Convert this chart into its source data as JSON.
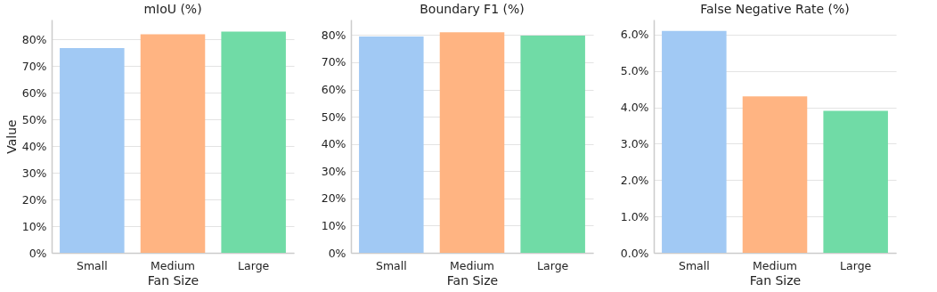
{
  "chart_data": [
    {
      "type": "bar",
      "title": "mIoU (%)",
      "xlabel": "Fan Size",
      "ylabel": "Value",
      "categories": [
        "Small",
        "Medium",
        "Large"
      ],
      "values": [
        76.8,
        82.0,
        83.0
      ],
      "colors": [
        "#a1c9f4",
        "#ffb482",
        "#70dba6"
      ],
      "ylim": [
        0,
        87.5
      ],
      "yticks": [
        {
          "value": 0,
          "label": "0%"
        },
        {
          "value": 10,
          "label": "10%"
        },
        {
          "value": 20,
          "label": "20%"
        },
        {
          "value": 30,
          "label": "30%"
        },
        {
          "value": 40,
          "label": "40%"
        },
        {
          "value": 50,
          "label": "50%"
        },
        {
          "value": 60,
          "label": "60%"
        },
        {
          "value": 70,
          "label": "70%"
        },
        {
          "value": 80,
          "label": "80%"
        }
      ],
      "grid": "y",
      "legend": false
    },
    {
      "type": "bar",
      "title": "Boundary F1 (%)",
      "xlabel": "Fan Size",
      "categories": [
        "Small",
        "Medium",
        "Large"
      ],
      "values": [
        79.5,
        81.0,
        79.8
      ],
      "colors": [
        "#a1c9f4",
        "#ffb482",
        "#70dba6"
      ],
      "ylim": [
        0,
        85.7
      ],
      "yticks": [
        {
          "value": 0,
          "label": "0%"
        },
        {
          "value": 10,
          "label": "10%"
        },
        {
          "value": 20,
          "label": "20%"
        },
        {
          "value": 30,
          "label": "30%"
        },
        {
          "value": 40,
          "label": "40%"
        },
        {
          "value": 50,
          "label": "50%"
        },
        {
          "value": 60,
          "label": "60%"
        },
        {
          "value": 70,
          "label": "70%"
        },
        {
          "value": 80,
          "label": "80%"
        }
      ],
      "grid": "y",
      "legend": false
    },
    {
      "type": "bar",
      "title": "False Negative Rate (%)",
      "xlabel": "Fan Size",
      "categories": [
        "Small",
        "Medium",
        "Large"
      ],
      "values": [
        6.1,
        4.3,
        3.9
      ],
      "colors": [
        "#a1c9f4",
        "#ffb482",
        "#70dba6"
      ],
      "ylim": [
        0,
        6.41
      ],
      "yticks": [
        {
          "value": 0,
          "label": "0.0%"
        },
        {
          "value": 1,
          "label": "1.0%"
        },
        {
          "value": 2,
          "label": "2.0%"
        },
        {
          "value": 3,
          "label": "3.0%"
        },
        {
          "value": 4,
          "label": "4.0%"
        },
        {
          "value": 5,
          "label": "5.0%"
        },
        {
          "value": 6,
          "label": "6.0%"
        }
      ],
      "grid": "y",
      "legend": false
    }
  ]
}
